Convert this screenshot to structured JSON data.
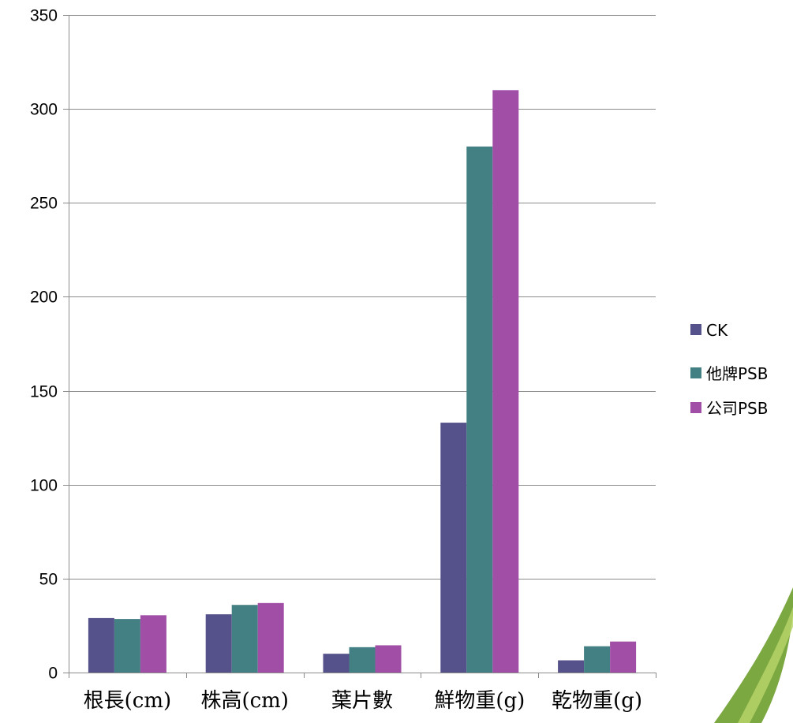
{
  "chart_data": {
    "type": "bar",
    "categories": [
      "根長(cm)",
      "株高(cm)",
      "葉片數",
      "鮮物重(g)",
      "乾物重(g)"
    ],
    "series": [
      {
        "name": "CK",
        "color": "#55528b",
        "values": [
          29,
          31,
          10,
          133,
          6.5
        ]
      },
      {
        "name": "他牌PSB",
        "color": "#438083",
        "values": [
          28.5,
          36,
          13.5,
          280,
          14
        ]
      },
      {
        "name": "公司PSB",
        "color": "#a14fa6",
        "values": [
          30.5,
          37,
          14.5,
          310,
          16.5
        ]
      }
    ],
    "title": "",
    "xlabel": "",
    "ylabel": "",
    "ylim": [
      0,
      350
    ],
    "yticks": [
      0,
      50,
      100,
      150,
      200,
      250,
      300,
      350
    ],
    "grid": true,
    "legend_position": "right"
  }
}
